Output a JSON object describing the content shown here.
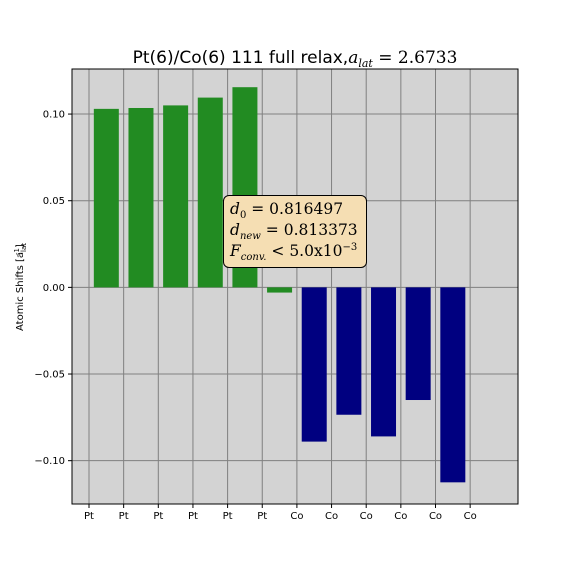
{
  "chart_data": {
    "type": "bar",
    "title": "Pt(6)/Co(6) 111 full relax,",
    "title_math": {
      "symbol": "a",
      "subscript": "lat",
      "value": "2.6733"
    },
    "ylabel": "Atomic Shifts [a",
    "ylabel_units": {
      "subscript": "lat",
      "superscript": "-1"
    },
    "xlabel": "",
    "categories": [
      "Pt",
      "Pt",
      "Pt",
      "Pt",
      "Pt",
      "Pt",
      "Co",
      "Co",
      "Co",
      "Co",
      "Co",
      "Co"
    ],
    "values": [
      0.103,
      0.1035,
      0.105,
      0.1095,
      0.1155,
      -0.003,
      -0.089,
      -0.0735,
      -0.086,
      -0.065,
      -0.1125,
      0.0
    ],
    "bar_colors": [
      "#228b22",
      "#228b22",
      "#228b22",
      "#228b22",
      "#228b22",
      "#228b22",
      "#000080",
      "#000080",
      "#000080",
      "#000080",
      "#000080",
      "#000080"
    ],
    "ylim": [
      -0.125,
      0.126
    ],
    "yticks": [
      -0.1,
      -0.05,
      0.0,
      0.05,
      0.1
    ],
    "ytick_labels": [
      "−0.10",
      "−0.05",
      "0.00",
      "0.05",
      "0.10"
    ],
    "grid": true,
    "background": "#d3d3d3",
    "grid_color": "#808080",
    "annotation": {
      "d0_value": "0.816497",
      "dnew_value": "0.813373",
      "fconv_value": "< 5.0x10",
      "fconv_exponent": "−3",
      "box_color": "#f5deb3"
    }
  }
}
